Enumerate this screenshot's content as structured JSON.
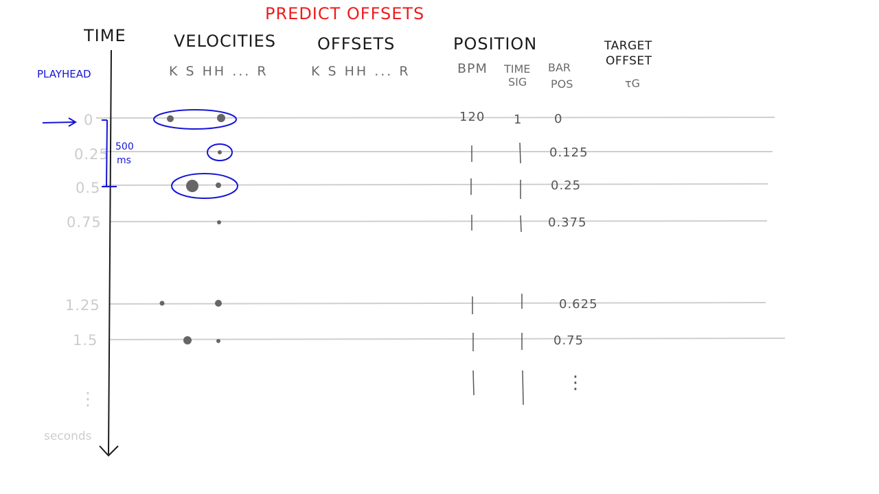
{
  "title": "PREDICT OFFSETS",
  "headers": {
    "time": "TIME",
    "velocities": "VELOCITIES",
    "offsets": "OFFSETS",
    "position": "POSITION",
    "target_line1": "TARGET",
    "target_line2": "OFFSET",
    "target_symbol": "τG"
  },
  "subheaders": {
    "velocities": "K S HH ... R",
    "offsets": "K S HH ... R",
    "bpm": "BPM",
    "timesig_line1": "TIME",
    "timesig_line2": "SIG",
    "barpos_line1": "BAR",
    "barpos_line2": "POS"
  },
  "playhead": {
    "label": "PLAYHEAD",
    "span_value": "500",
    "span_unit": "ms"
  },
  "axis": {
    "unit": "seconds",
    "continuation": "⋮"
  },
  "rows": [
    {
      "time": "0",
      "bpm": "120",
      "timesig": "1",
      "barpos": "0"
    },
    {
      "time": "0.25",
      "bpm": "",
      "timesig": "",
      "barpos": "0.125"
    },
    {
      "time": "0.5",
      "bpm": "",
      "timesig": "",
      "barpos": "0.25"
    },
    {
      "time": "0.75",
      "bpm": "",
      "timesig": "",
      "barpos": "0.375"
    },
    {
      "time": "1.25",
      "bpm": "",
      "timesig": "",
      "barpos": "0.625"
    },
    {
      "time": "1.5",
      "bpm": "",
      "timesig": "",
      "barpos": "0.75"
    }
  ],
  "barpos_continuation": "⋮",
  "colors": {
    "ink": "#1a1a1a",
    "grid": "#cfcfcf",
    "faded": "#cccccc",
    "annotation": "#1414d6",
    "title": "#ee1c1c",
    "dot": "#666666"
  }
}
